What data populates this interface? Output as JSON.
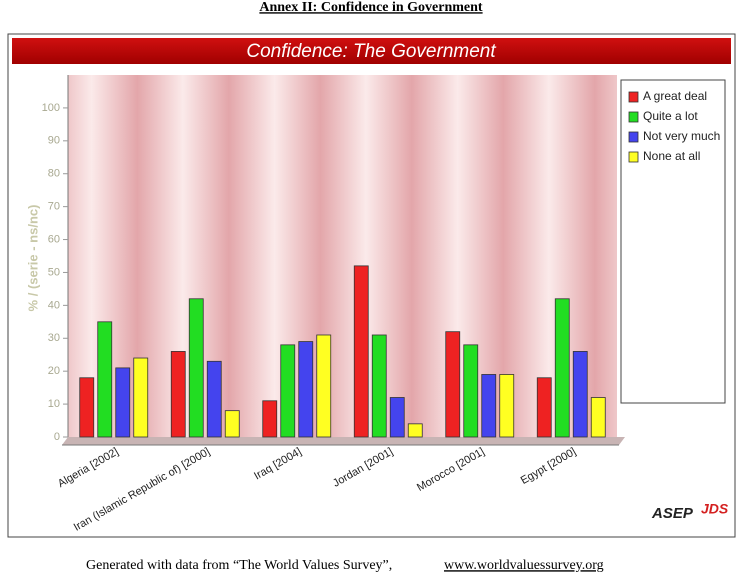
{
  "heading": "Annex II: Confidence in Government",
  "chart_data": {
    "type": "bar",
    "title": "Confidence: The Government",
    "y_label": "% / (serie - ns/nc)",
    "categories": [
      "Algeria [2002]",
      "Iran (Islamic Republic of) [2000]",
      "Iraq [2004]",
      "Jordan [2001]",
      "Morocco [2001]",
      "Egypt [2000]"
    ],
    "series": [
      {
        "name": "A great deal",
        "color": "#ee2222",
        "values": [
          18,
          26,
          11,
          52,
          32,
          18
        ]
      },
      {
        "name": "Quite a lot",
        "color": "#22dd22",
        "values": [
          35,
          42,
          28,
          31,
          28,
          42
        ]
      },
      {
        "name": "Not very much",
        "color": "#4444ee",
        "values": [
          21,
          23,
          29,
          12,
          19,
          26
        ]
      },
      {
        "name": "None at all",
        "color": "#ffff22",
        "values": [
          24,
          8,
          31,
          4,
          19,
          12
        ]
      }
    ],
    "ylim": [
      0,
      110
    ],
    "yticks": [
      0,
      10,
      20,
      30,
      40,
      50,
      60,
      70,
      80,
      90,
      100
    ],
    "legend": "right"
  },
  "footer": {
    "text": "Generated with data from “The World Values Survey”,",
    "link": "www.worldvaluessurvey.org"
  },
  "logo": {
    "left": "ASEP",
    "right": "JDS"
  }
}
